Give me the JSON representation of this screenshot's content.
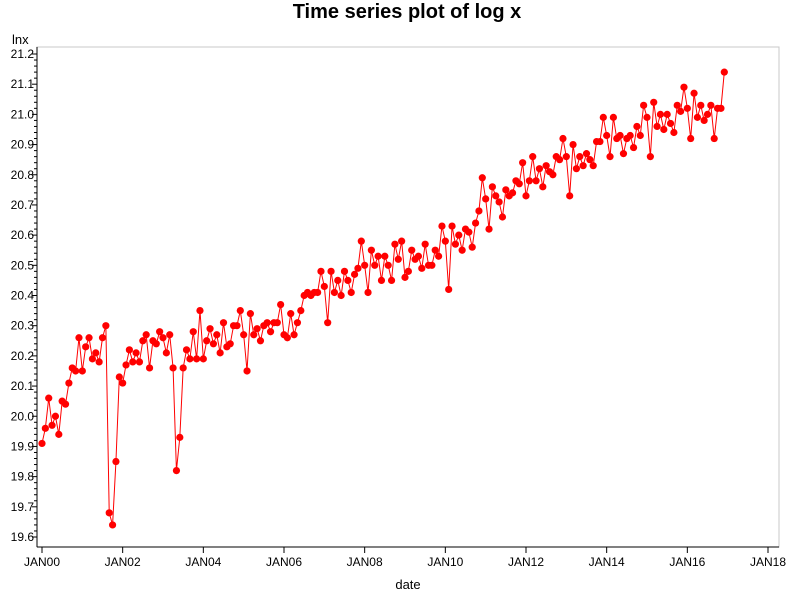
{
  "chart_data": {
    "type": "line",
    "title": "Time series plot of  log x",
    "xlabel": "date",
    "ylabel": "lnx",
    "x_axis": {
      "type": "date",
      "range": [
        "2000-01",
        "2018-01"
      ],
      "ticks": [
        "JAN00",
        "JAN02",
        "JAN04",
        "JAN06",
        "JAN08",
        "JAN10",
        "JAN12",
        "JAN14",
        "JAN16",
        "JAN18"
      ]
    },
    "y_axis": {
      "range": [
        19.6,
        21.2
      ],
      "ticks": [
        "19.6",
        "19.7",
        "19.8",
        "19.9",
        "20.0",
        "20.1",
        "20.2",
        "20.3",
        "20.4",
        "20.5",
        "20.6",
        "20.7",
        "20.8",
        "20.9",
        "21.0",
        "21.1",
        "21.2"
      ]
    },
    "grid": false,
    "legend": "none",
    "colors": {
      "series": "#ff0000",
      "frame": "#c8c8c8"
    },
    "series": [
      {
        "x_start": "2000-01",
        "frequency": "monthly",
        "values": [
          19.91,
          19.96,
          20.06,
          19.97,
          20.0,
          19.94,
          20.05,
          20.04,
          20.11,
          20.16,
          20.15,
          20.26,
          20.15,
          20.23,
          20.26,
          20.19,
          20.21,
          20.18,
          20.26,
          20.3,
          19.68,
          19.64,
          19.85,
          20.13,
          20.11,
          20.17,
          20.22,
          20.18,
          20.21,
          20.18,
          20.25,
          20.27,
          20.16,
          20.25,
          20.24,
          20.28,
          20.26,
          20.21,
          20.27,
          20.16,
          19.82,
          19.93,
          20.16,
          20.22,
          20.19,
          20.28,
          20.19,
          20.35,
          20.19,
          20.25,
          20.29,
          20.24,
          20.27,
          20.21,
          20.31,
          20.23,
          20.24,
          20.3,
          20.3,
          20.35,
          20.27,
          20.15,
          20.34,
          20.27,
          20.29,
          20.25,
          20.3,
          20.31,
          20.28,
          20.31,
          20.31,
          20.37,
          20.27,
          20.26,
          20.34,
          20.27,
          20.31,
          20.35,
          20.4,
          20.41,
          20.4,
          20.41,
          20.41,
          20.48,
          20.43,
          20.31,
          20.48,
          20.41,
          20.45,
          20.4,
          20.48,
          20.45,
          20.41,
          20.47,
          20.49,
          20.58,
          20.5,
          20.41,
          20.55,
          20.5,
          20.53,
          20.45,
          20.53,
          20.5,
          20.45,
          20.57,
          20.52,
          20.58,
          20.46,
          20.48,
          20.55,
          20.52,
          20.53,
          20.49,
          20.57,
          20.5,
          20.5,
          20.55,
          20.53,
          20.63,
          20.58,
          20.42,
          20.63,
          20.57,
          20.6,
          20.55,
          20.62,
          20.61,
          20.56,
          20.64,
          20.68,
          20.79,
          20.72,
          20.62,
          20.76,
          20.73,
          20.71,
          20.66,
          20.75,
          20.73,
          20.74,
          20.78,
          20.77,
          20.84,
          20.73,
          20.78,
          20.86,
          20.78,
          20.82,
          20.76,
          20.83,
          20.81,
          20.8,
          20.86,
          20.85,
          20.92,
          20.86,
          20.73,
          20.9,
          20.82,
          20.86,
          20.83,
          20.87,
          20.85,
          20.83,
          20.91,
          20.91,
          20.99,
          20.93,
          20.86,
          20.99,
          20.92,
          20.93,
          20.87,
          20.92,
          20.93,
          20.89,
          20.96,
          20.93,
          21.03,
          20.99,
          20.86,
          21.04,
          20.96,
          21.0,
          20.95,
          21.0,
          20.97,
          20.94,
          21.03,
          21.01,
          21.09,
          21.02,
          20.92,
          21.07,
          20.99,
          21.03,
          20.98,
          21.0,
          21.03,
          20.92,
          21.02,
          21.02,
          21.14
        ]
      }
    ]
  }
}
